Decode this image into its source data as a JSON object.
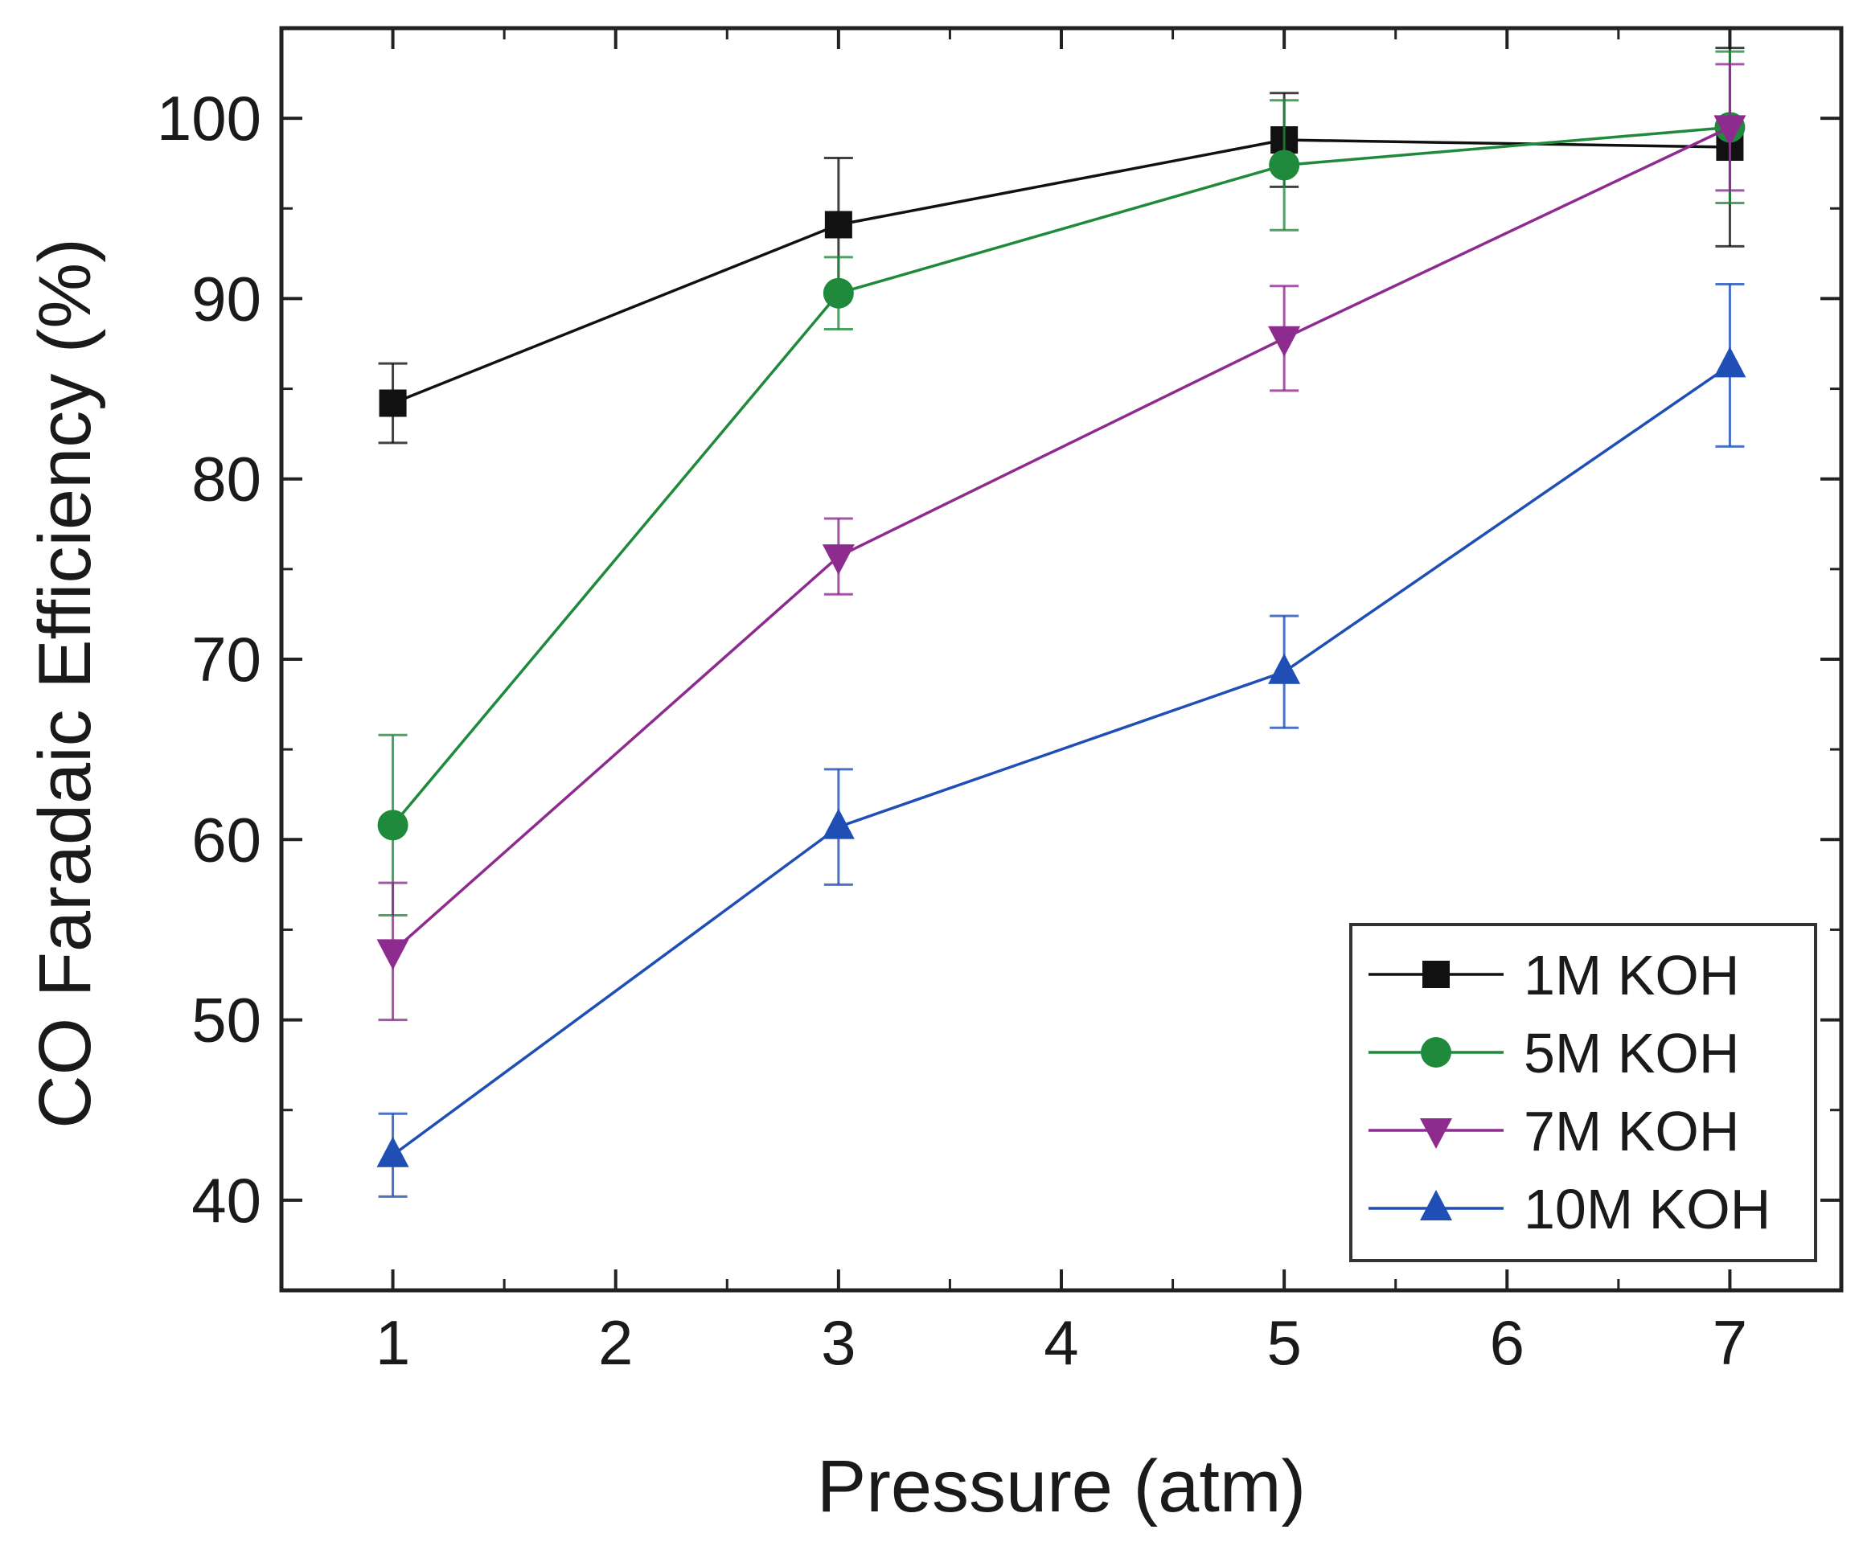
{
  "chart_data": {
    "type": "line",
    "title": "",
    "xlabel": "Pressure (atm)",
    "ylabel": "CO Faradaic Efficiency (%)",
    "xlim": [
      0.5,
      7.5
    ],
    "ylim": [
      35,
      105
    ],
    "grid": false,
    "x_ticks": [
      1,
      2,
      3,
      4,
      5,
      6,
      7
    ],
    "y_ticks": [
      40,
      50,
      60,
      70,
      80,
      90,
      100
    ],
    "x_tick_labels": [
      "1",
      "2",
      "3",
      "4",
      "5",
      "6",
      "7"
    ],
    "y_tick_labels": [
      "40",
      "50",
      "60",
      "70",
      "80",
      "90",
      "100"
    ],
    "legend_position": "bottom-right",
    "x": [
      1,
      3,
      5,
      7
    ],
    "series": [
      {
        "name": "1M KOH",
        "color": "#111111",
        "marker": "square",
        "values": [
          84.2,
          94.1,
          98.8,
          98.4
        ],
        "errors": [
          2.2,
          3.7,
          2.6,
          5.5
        ]
      },
      {
        "name": "5M KOH",
        "color": "#1f8a3c",
        "marker": "circle",
        "values": [
          60.8,
          90.3,
          97.4,
          99.5
        ],
        "errors": [
          5.0,
          2.0,
          3.6,
          4.2
        ]
      },
      {
        "name": "7M KOH",
        "color": "#8e2b8e",
        "marker": "triangle-down",
        "values": [
          53.8,
          75.7,
          87.8,
          99.5
        ],
        "errors": [
          3.8,
          2.1,
          2.9,
          3.5
        ]
      },
      {
        "name": "10M KOH",
        "color": "#1f4fb5",
        "marker": "triangle-up",
        "values": [
          42.5,
          60.7,
          69.3,
          86.3
        ],
        "errors": [
          2.3,
          3.2,
          3.1,
          4.5
        ]
      }
    ]
  }
}
